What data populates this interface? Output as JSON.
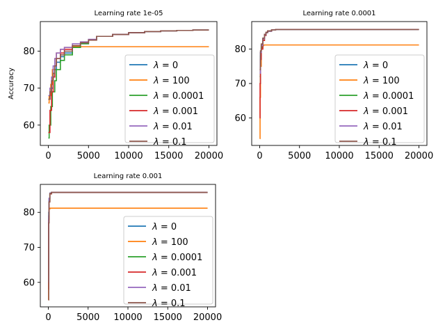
{
  "chart_data": [
    {
      "type": "line",
      "title": "Learning rate 1e-05",
      "ylabel": "Accuracy",
      "xlabel": "",
      "xlim": [
        -1000,
        21000
      ],
      "ylim": [
        54.5,
        88.0
      ],
      "xticks": [
        0,
        5000,
        10000,
        15000,
        20000
      ],
      "xtick_labels": [
        "0",
        "5000",
        "10000",
        "15000",
        "20000"
      ],
      "yticks": [
        60,
        70,
        80
      ],
      "ytick_labels": [
        "60",
        "70",
        "80"
      ],
      "legend_position": "lower right",
      "series": [
        {
          "name": "λ = 0",
          "label_math": "λ = 0",
          "color": "#1f77b4",
          "x": [
            0,
            200,
            400,
            600,
            800,
            1000,
            1500,
            2000,
            3000,
            4000,
            5000,
            6000,
            8000,
            10000,
            12000,
            14000,
            16000,
            18000,
            20000
          ],
          "y": [
            67,
            68,
            70,
            73,
            75,
            77,
            78.5,
            79.5,
            81,
            82,
            83,
            84,
            84.5,
            85,
            85.3,
            85.5,
            85.6,
            85.7,
            85.7
          ]
        },
        {
          "name": "λ = 100",
          "label_math": "λ = 100",
          "color": "#ff7f0e",
          "x": [
            0,
            100,
            300,
            500,
            800,
            1000,
            1500,
            2000,
            3000,
            5000,
            10000,
            15000,
            20000
          ],
          "y": [
            66,
            68,
            71,
            75,
            78,
            79.5,
            80.5,
            81,
            81.2,
            81.2,
            81.2,
            81.2,
            81.2
          ]
        },
        {
          "name": "λ = 0.0001",
          "label_math": "λ = 0.0001",
          "color": "#2ca02c",
          "x": [
            0,
            100,
            300,
            500,
            800,
            1000,
            1500,
            2000,
            3000,
            4000,
            5000,
            6000,
            8000,
            10000,
            12000,
            14000,
            16000,
            18000,
            20000
          ],
          "y": [
            56.5,
            60,
            65,
            69,
            72,
            75,
            77.5,
            79,
            81,
            82,
            83,
            84,
            84.5,
            85,
            85.3,
            85.5,
            85.6,
            85.7,
            85.7
          ]
        },
        {
          "name": "λ = 0.001",
          "label_math": "λ = 0.001",
          "color": "#d62728",
          "x": [
            0,
            200,
            400,
            600,
            800,
            1000,
            1500,
            2000,
            3000,
            4000,
            5000,
            6000,
            8000,
            10000,
            12000,
            14000,
            16000,
            18000,
            20000
          ],
          "y": [
            58,
            64,
            69,
            73,
            76,
            78,
            79.5,
            80.5,
            81.5,
            82.3,
            83,
            84,
            84.5,
            85,
            85.3,
            85.5,
            85.6,
            85.7,
            85.7
          ]
        },
        {
          "name": "λ = 0.01",
          "label_math": "λ = 0.01",
          "color": "#9467bd",
          "x": [
            0,
            200,
            400,
            600,
            800,
            1000,
            1500,
            2000,
            3000,
            4000,
            5000,
            6000,
            8000,
            10000,
            12000,
            14000,
            16000,
            18000,
            20000
          ],
          "y": [
            68,
            70,
            73,
            76,
            78,
            79.5,
            80.5,
            81,
            82,
            82.5,
            83.2,
            84,
            84.5,
            85,
            85.3,
            85.5,
            85.6,
            85.7,
            85.7
          ]
        },
        {
          "name": "λ = 0.1",
          "label_math": "λ = 0.1",
          "color": "#8c564b",
          "x": [
            0,
            200,
            400,
            600,
            800,
            1000,
            1500,
            2000,
            3000,
            4000,
            5000,
            6000,
            8000,
            10000,
            12000,
            14000,
            16000,
            18000,
            20000
          ],
          "y": [
            67,
            69,
            72,
            74,
            76,
            78,
            79,
            80,
            81.5,
            82.3,
            83,
            84,
            84.5,
            85,
            85.3,
            85.5,
            85.6,
            85.7,
            85.7
          ]
        }
      ]
    },
    {
      "type": "line",
      "title": "Learning rate 0.0001",
      "ylabel": "",
      "xlabel": "",
      "xlim": [
        -1000,
        21000
      ],
      "ylim": [
        52.0,
        88.0
      ],
      "xticks": [
        0,
        5000,
        10000,
        15000,
        20000
      ],
      "xtick_labels": [
        "0",
        "5000",
        "10000",
        "15000",
        "20000"
      ],
      "yticks": [
        60,
        70,
        80
      ],
      "ytick_labels": [
        "60",
        "70",
        "80"
      ],
      "legend_position": "lower right",
      "series": [
        {
          "name": "λ = 0",
          "label_math": "λ = 0",
          "color": "#1f77b4",
          "x": [
            0,
            100,
            200,
            400,
            600,
            800,
            1000,
            1500,
            2000,
            5000,
            10000,
            15000,
            20000
          ],
          "y": [
            72,
            79,
            81,
            83,
            84,
            84.8,
            85.2,
            85.6,
            85.7,
            85.7,
            85.7,
            85.7,
            85.7
          ]
        },
        {
          "name": "λ = 100",
          "label_math": "λ = 100",
          "color": "#ff7f0e",
          "x": [
            0,
            50,
            100,
            200,
            300,
            500,
            1000,
            5000,
            10000,
            15000,
            20000
          ],
          "y": [
            54,
            66,
            75,
            80,
            81,
            81.2,
            81.2,
            81.2,
            81.2,
            81.2,
            81.2
          ]
        },
        {
          "name": "λ = 0.0001",
          "label_math": "λ = 0.0001",
          "color": "#2ca02c",
          "x": [
            0,
            100,
            200,
            400,
            600,
            800,
            1000,
            1500,
            2000,
            5000,
            10000,
            15000,
            20000
          ],
          "y": [
            70,
            78,
            80.5,
            82.5,
            84,
            84.8,
            85.2,
            85.6,
            85.7,
            85.7,
            85.7,
            85.7,
            85.7
          ]
        },
        {
          "name": "λ = 0.001",
          "label_math": "λ = 0.001",
          "color": "#d62728",
          "x": [
            0,
            50,
            100,
            200,
            400,
            600,
            800,
            1000,
            1500,
            2000,
            5000,
            10000,
            15000,
            20000
          ],
          "y": [
            60,
            70,
            77,
            80,
            82.5,
            84,
            84.8,
            85.2,
            85.6,
            85.7,
            85.7,
            85.7,
            85.7,
            85.7
          ]
        },
        {
          "name": "λ = 0.01",
          "label_math": "λ = 0.01",
          "color": "#9467bd",
          "x": [
            0,
            100,
            200,
            400,
            600,
            800,
            1000,
            1500,
            2000,
            5000,
            10000,
            15000,
            20000
          ],
          "y": [
            73,
            79,
            81,
            83,
            84.2,
            84.8,
            85.2,
            85.6,
            85.7,
            85.7,
            85.7,
            85.7,
            85.7
          ]
        },
        {
          "name": "λ = 0.1",
          "label_math": "λ = 0.1",
          "color": "#8c564b",
          "x": [
            0,
            100,
            200,
            400,
            600,
            800,
            1000,
            1500,
            2000,
            5000,
            10000,
            15000,
            20000
          ],
          "y": [
            74,
            79.5,
            81.5,
            83.2,
            84.3,
            84.9,
            85.3,
            85.6,
            85.7,
            85.7,
            85.7,
            85.7,
            85.7
          ]
        }
      ]
    },
    {
      "type": "line",
      "title": "Learning rate 0.001",
      "ylabel": "",
      "xlabel": "",
      "xlim": [
        -1000,
        21000
      ],
      "ylim": [
        53.0,
        88.0
      ],
      "xticks": [
        0,
        5000,
        10000,
        15000,
        20000
      ],
      "xtick_labels": [
        "0",
        "5000",
        "10000",
        "15000",
        "20000"
      ],
      "yticks": [
        60,
        70,
        80
      ],
      "ytick_labels": [
        "60",
        "70",
        "80"
      ],
      "legend_position": "lower right",
      "series": [
        {
          "name": "λ = 0",
          "label_math": "λ = 0",
          "color": "#1f77b4",
          "x": [
            0,
            50,
            100,
            200,
            400,
            5000,
            10000,
            15000,
            20000
          ],
          "y": [
            65,
            80,
            84,
            85.5,
            85.7,
            85.7,
            85.7,
            85.7,
            85.7
          ]
        },
        {
          "name": "λ = 100",
          "label_math": "λ = 100",
          "color": "#ff7f0e",
          "x": [
            0,
            30,
            60,
            100,
            200,
            5000,
            10000,
            15000,
            20000
          ],
          "y": [
            55,
            70,
            79,
            81,
            81.2,
            81.2,
            81.2,
            81.2,
            81.2
          ]
        },
        {
          "name": "λ = 0.0001",
          "label_math": "λ = 0.0001",
          "color": "#2ca02c",
          "x": [
            0,
            50,
            100,
            200,
            400,
            5000,
            10000,
            15000,
            20000
          ],
          "y": [
            62,
            79,
            83.5,
            85.3,
            85.7,
            85.7,
            85.7,
            85.7,
            85.7
          ]
        },
        {
          "name": "λ = 0.001",
          "label_math": "λ = 0.001",
          "color": "#d62728",
          "x": [
            0,
            50,
            100,
            200,
            400,
            5000,
            10000,
            15000,
            20000
          ],
          "y": [
            58,
            78,
            83,
            85.3,
            85.7,
            85.7,
            85.7,
            85.7,
            85.7
          ]
        },
        {
          "name": "λ = 0.01",
          "label_math": "λ = 0.01",
          "color": "#9467bd",
          "x": [
            0,
            50,
            100,
            200,
            400,
            5000,
            10000,
            15000,
            20000
          ],
          "y": [
            60,
            79,
            84,
            85.5,
            85.7,
            85.7,
            85.7,
            85.7,
            85.7
          ]
        },
        {
          "name": "λ = 0.1",
          "label_math": "λ = 0.1",
          "color": "#8c564b",
          "x": [
            0,
            50,
            100,
            200,
            400,
            5000,
            10000,
            15000,
            20000
          ],
          "y": [
            55,
            77,
            83,
            85.4,
            85.7,
            85.7,
            85.7,
            85.7,
            85.7
          ]
        }
      ]
    }
  ]
}
